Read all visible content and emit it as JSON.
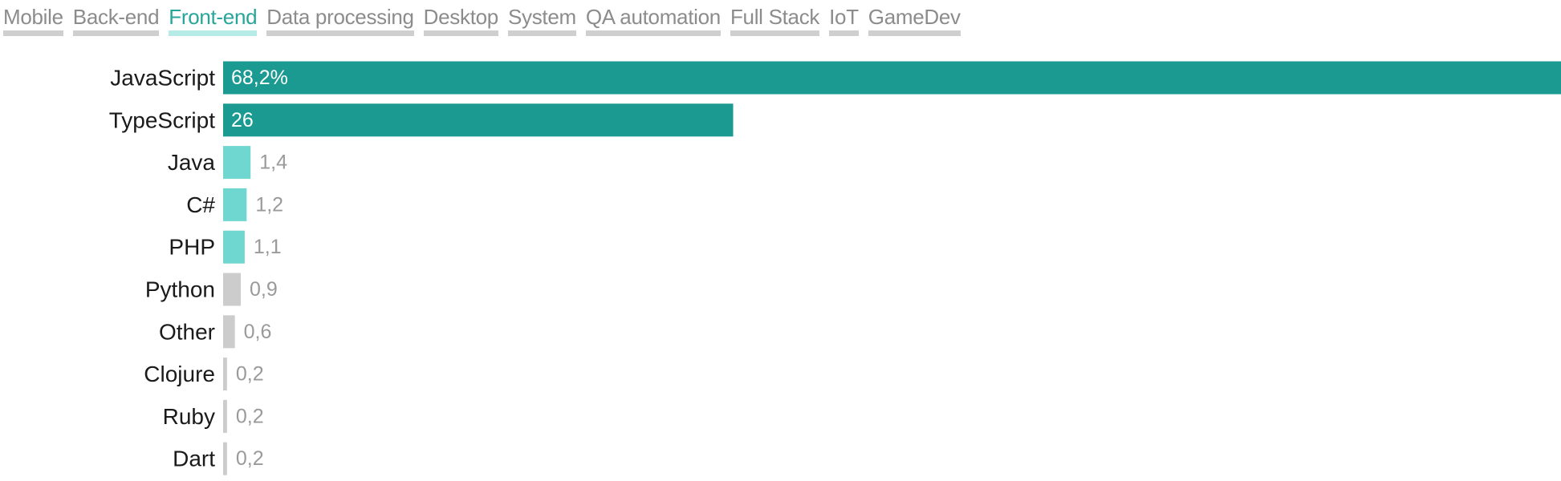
{
  "tabs": [
    {
      "label": "Mobile",
      "active": false
    },
    {
      "label": "Back-end",
      "active": false
    },
    {
      "label": "Front-end",
      "active": true
    },
    {
      "label": "Data processing",
      "active": false
    },
    {
      "label": "Desktop",
      "active": false
    },
    {
      "label": "System",
      "active": false
    },
    {
      "label": "QA automation",
      "active": false
    },
    {
      "label": "Full Stack",
      "active": false
    },
    {
      "label": "IoT",
      "active": false
    },
    {
      "label": "GameDev",
      "active": false
    }
  ],
  "colors": {
    "accent": "#26a69a",
    "primary_bar": "#1a9a90",
    "secondary_bar": "#6fd6d0",
    "minor_bar": "#cccccc",
    "tab_inactive": "#8c8c8c",
    "tab_underline": "#cfcfcf",
    "tab_active_underline": "#b7ebe7"
  },
  "chart_data": {
    "type": "bar",
    "orientation": "horizontal",
    "categories": [
      "JavaScript",
      "TypeScript",
      "Java",
      "C#",
      "PHP",
      "Python",
      "Other",
      "Clojure",
      "Ruby",
      "Dart"
    ],
    "values": [
      68.2,
      26,
      1.4,
      1.2,
      1.1,
      0.9,
      0.6,
      0.2,
      0.2,
      0.2
    ],
    "value_labels": [
      "68,2%",
      "26",
      "1,4",
      "1,2",
      "1,1",
      "0,9",
      "0,6",
      "0,2",
      "0,2",
      "0,2"
    ],
    "bar_tiers": [
      "primary",
      "primary",
      "secondary",
      "secondary",
      "secondary",
      "minor",
      "minor",
      "minor",
      "minor",
      "minor"
    ],
    "xlim": [
      0,
      68.2
    ],
    "title": "",
    "xlabel": "",
    "ylabel": "",
    "grid": false
  }
}
